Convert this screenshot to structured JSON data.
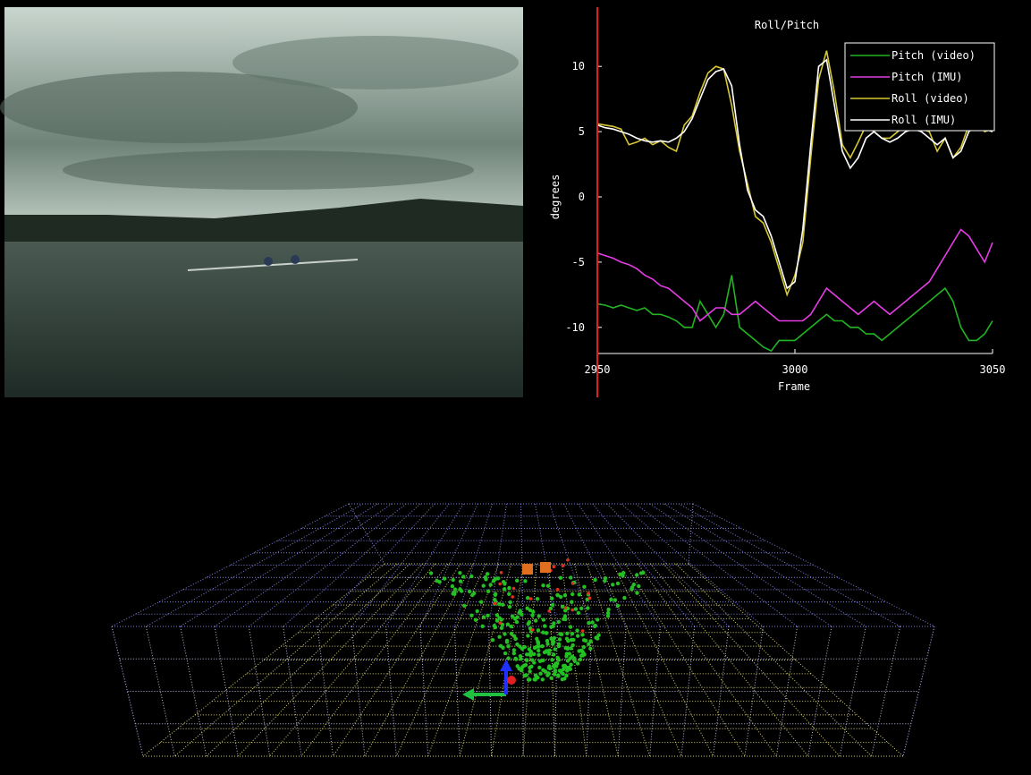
{
  "chart_data": {
    "type": "line",
    "title": "Roll/Pitch",
    "x_label": "Frame",
    "y_label": "degrees",
    "x": [
      2950,
      2952,
      2954,
      2956,
      2958,
      2960,
      2962,
      2964,
      2966,
      2968,
      2970,
      2972,
      2974,
      2976,
      2978,
      2980,
      2982,
      2984,
      2986,
      2988,
      2990,
      2992,
      2994,
      2996,
      2998,
      3000,
      3002,
      3004,
      3006,
      3008,
      3010,
      3012,
      3014,
      3016,
      3018,
      3020,
      3022,
      3024,
      3026,
      3028,
      3030,
      3032,
      3034,
      3036,
      3038,
      3040,
      3042,
      3044,
      3046,
      3048,
      3050
    ],
    "series": [
      {
        "name": "Pitch (video)",
        "color": "#22b422",
        "values": [
          -8.2,
          -8.3,
          -8.5,
          -8.3,
          -8.5,
          -8.7,
          -8.5,
          -9,
          -9,
          -9.2,
          -9.5,
          -10,
          -10,
          -8,
          -9,
          -10,
          -9,
          -6,
          -10,
          -10.5,
          -11,
          -11.5,
          -11.8,
          -11,
          -11,
          -11,
          -10.5,
          -10,
          -9.5,
          -9,
          -9.5,
          -9.5,
          -10,
          -10,
          -10.5,
          -10.5,
          -11,
          -10.5,
          -10,
          -9.5,
          -9,
          -8.5,
          -8,
          -7.5,
          -7,
          -8,
          -10,
          -11,
          -11,
          -10.5,
          -9.5
        ]
      },
      {
        "name": "Pitch (IMU)",
        "color": "#e43ce4",
        "values": [
          -4.3,
          -4.5,
          -4.7,
          -5,
          -5.2,
          -5.5,
          -6,
          -6.3,
          -6.8,
          -7,
          -7.5,
          -8,
          -8.5,
          -9.5,
          -9,
          -8.5,
          -8.5,
          -9,
          -9,
          -8.5,
          -8,
          -8.5,
          -9,
          -9.5,
          -9.5,
          -9.5,
          -9.5,
          -9,
          -8,
          -7,
          -7.5,
          -8,
          -8.5,
          -9,
          -8.5,
          -8,
          -8.5,
          -9,
          -8.5,
          -8,
          -7.5,
          -7,
          -6.5,
          -5.5,
          -4.5,
          -3.5,
          -2.5,
          -3,
          -4,
          -5,
          -3.5
        ]
      },
      {
        "name": "Roll (video)",
        "color": "#d8c832",
        "values": [
          5.6,
          5.5,
          5.4,
          5.2,
          4.0,
          4.2,
          4.5,
          4.0,
          4.3,
          3.8,
          3.5,
          5.5,
          6.2,
          8,
          9.5,
          10,
          9.8,
          7,
          3.5,
          1,
          -1.5,
          -2,
          -3.5,
          -5.5,
          -7.5,
          -6,
          -3.5,
          3,
          9,
          11.2,
          8,
          4,
          3,
          4.2,
          5.5,
          5,
          4.5,
          4.5,
          5,
          5.5,
          5.5,
          5.2,
          5,
          3.5,
          4.5,
          3,
          3.8,
          5.5,
          5.8,
          5,
          5.2
        ]
      },
      {
        "name": "Roll (IMU)",
        "color": "#ffffff",
        "values": [
          5.5,
          5.3,
          5.2,
          5,
          4.8,
          4.5,
          4.3,
          4.2,
          4.3,
          4.2,
          4.5,
          5,
          6,
          7.5,
          9,
          9.6,
          9.8,
          8.5,
          4,
          0.5,
          -1,
          -1.5,
          -3,
          -5,
          -7,
          -6.5,
          -2.5,
          4,
          10,
          10.5,
          7,
          3.5,
          2.2,
          3,
          4.5,
          5,
          4.5,
          4.2,
          4.5,
          5,
          5.2,
          5,
          4.5,
          4,
          4.5,
          3,
          3.5,
          5,
          5.5,
          5.2,
          5
        ]
      }
    ],
    "cursor": 2950,
    "cursor_color": "#e02020",
    "xlim": [
      2950,
      3050
    ],
    "xticks": [
      2950,
      3000,
      3050
    ],
    "ylim": [
      -12,
      12
    ],
    "yticks": [
      -10,
      -5,
      0,
      5,
      10
    ],
    "legend": "upper right"
  }
}
